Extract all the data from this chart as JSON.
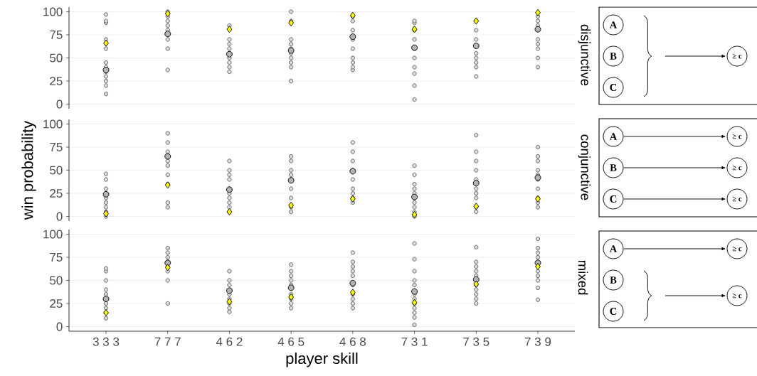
{
  "chart_data": [
    {
      "type": "scatter",
      "title": "disjunctive",
      "categories": [
        "3 3 3",
        "7 7 7",
        "4 6 2",
        "4 6 5",
        "4 6 8",
        "7 3 1",
        "7 3 5",
        "7 3 9"
      ],
      "ylim": [
        -5,
        105
      ],
      "yticks": [
        0,
        25,
        50,
        75,
        100
      ],
      "grid": "y",
      "tick_labels": "y",
      "series": [
        {
          "type": "scatter",
          "marker": "circle",
          "color": "#dcdcdc",
          "x": [
            "3 3 3",
            "3 3 3",
            "3 3 3",
            "3 3 3",
            "3 3 3",
            "3 3 3",
            "3 3 3",
            "3 3 3",
            "3 3 3",
            "3 3 3",
            "3 3 3",
            "3 3 3",
            "7 7 7",
            "7 7 7",
            "7 7 7",
            "7 7 7",
            "7 7 7",
            "7 7 7",
            "7 7 7",
            "7 7 7",
            "7 7 7",
            "4 6 2",
            "4 6 2",
            "4 6 2",
            "4 6 2",
            "4 6 2",
            "4 6 2",
            "4 6 2",
            "4 6 2",
            "4 6 2",
            "4 6 5",
            "4 6 5",
            "4 6 5",
            "4 6 5",
            "4 6 5",
            "4 6 5",
            "4 6 5",
            "4 6 5",
            "4 6 5",
            "4 6 5",
            "4 6 8",
            "4 6 8",
            "4 6 8",
            "4 6 8",
            "4 6 8",
            "4 6 8",
            "4 6 8",
            "4 6 8",
            "4 6 8",
            "7 3 1",
            "7 3 1",
            "7 3 1",
            "7 3 1",
            "7 3 1",
            "7 3 1",
            "7 3 1",
            "7 3 1",
            "7 3 1",
            "7 3 1",
            "7 3 5",
            "7 3 5",
            "7 3 5",
            "7 3 5",
            "7 3 5",
            "7 3 5",
            "7 3 5",
            "7 3 5",
            "7 3 9",
            "7 3 9",
            "7 3 9",
            "7 3 9",
            "7 3 9",
            "7 3 9",
            "7 3 9",
            "7 3 9"
          ],
          "values": [
            11,
            20,
            25,
            30,
            35,
            40,
            45,
            60,
            70,
            88,
            90,
            97,
            37,
            60,
            70,
            75,
            80,
            85,
            90,
            95,
            100,
            35,
            40,
            45,
            50,
            55,
            60,
            65,
            70,
            85,
            25,
            40,
            45,
            50,
            55,
            60,
            65,
            70,
            90,
            100,
            37,
            40,
            45,
            50,
            60,
            70,
            80,
            90,
            95,
            5,
            20,
            33,
            40,
            50,
            60,
            70,
            80,
            88,
            90,
            30,
            40,
            45,
            50,
            55,
            70,
            80,
            90,
            40,
            50,
            60,
            65,
            70,
            85,
            90,
            95
          ]
        },
        {
          "type": "scatter",
          "marker": "circle",
          "color": "#b3b3b3",
          "values": [
            37,
            76,
            54,
            58,
            73,
            61,
            63,
            81
          ]
        },
        {
          "type": "scatter",
          "marker": "diamond",
          "color": "#ffff00",
          "values": [
            66,
            98,
            81,
            88,
            96,
            81,
            90,
            99
          ]
        }
      ]
    },
    {
      "type": "scatter",
      "title": "conjunctive",
      "ylabel": "win probability",
      "categories": [
        "3 3 3",
        "7 7 7",
        "4 6 2",
        "4 6 5",
        "4 6 8",
        "7 3 1",
        "7 3 5",
        "7 3 9"
      ],
      "ylim": [
        -5,
        105
      ],
      "yticks": [
        0,
        25,
        50,
        75,
        100
      ],
      "grid": "y",
      "tick_labels": "y",
      "series": [
        {
          "type": "scatter",
          "marker": "circle",
          "color": "#dcdcdc",
          "x": [
            "3 3 3",
            "3 3 3",
            "3 3 3",
            "3 3 3",
            "3 3 3",
            "3 3 3",
            "3 3 3",
            "3 3 3",
            "3 3 3",
            "7 7 7",
            "7 7 7",
            "7 7 7",
            "7 7 7",
            "7 7 7",
            "7 7 7",
            "7 7 7",
            "7 7 7",
            "7 7 7",
            "4 6 2",
            "4 6 2",
            "4 6 2",
            "4 6 2",
            "4 6 2",
            "4 6 2",
            "4 6 2",
            "4 6 2",
            "4 6 2",
            "4 6 2",
            "4 6 5",
            "4 6 5",
            "4 6 5",
            "4 6 5",
            "4 6 5",
            "4 6 5",
            "4 6 5",
            "4 6 5",
            "4 6 5",
            "4 6 8",
            "4 6 8",
            "4 6 8",
            "4 6 8",
            "4 6 8",
            "4 6 8",
            "4 6 8",
            "4 6 8",
            "4 6 8",
            "7 3 1",
            "7 3 1",
            "7 3 1",
            "7 3 1",
            "7 3 1",
            "7 3 1",
            "7 3 1",
            "7 3 1",
            "7 3 1",
            "7 3 1",
            "7 3 5",
            "7 3 5",
            "7 3 5",
            "7 3 5",
            "7 3 5",
            "7 3 5",
            "7 3 5",
            "7 3 5",
            "7 3 5",
            "7 3 5",
            "7 3 9",
            "7 3 9",
            "7 3 9",
            "7 3 9",
            "7 3 9",
            "7 3 9",
            "7 3 9",
            "7 3 9",
            "7 3 9",
            "7 3 9"
          ],
          "values": [
            0,
            5,
            10,
            15,
            20,
            25,
            30,
            40,
            46,
            10,
            15,
            35,
            45,
            55,
            60,
            70,
            80,
            90,
            5,
            10,
            15,
            20,
            25,
            30,
            40,
            45,
            50,
            60,
            5,
            10,
            20,
            30,
            40,
            45,
            50,
            60,
            65,
            15,
            20,
            25,
            30,
            40,
            50,
            60,
            70,
            80,
            0,
            5,
            10,
            15,
            20,
            25,
            30,
            35,
            45,
            55,
            5,
            10,
            20,
            25,
            30,
            40,
            50,
            60,
            70,
            88,
            10,
            15,
            20,
            30,
            40,
            45,
            50,
            60,
            65,
            75
          ]
        },
        {
          "type": "scatter",
          "marker": "circle",
          "color": "#b3b3b3",
          "values": [
            24,
            65,
            29,
            39,
            49,
            21,
            36,
            42
          ]
        },
        {
          "type": "scatter",
          "marker": "diamond",
          "color": "#ffff00",
          "values": [
            3,
            34,
            5,
            12,
            19,
            2,
            11,
            19
          ]
        }
      ]
    },
    {
      "type": "scatter",
      "title": "mixed",
      "xlabel": "player skill",
      "categories": [
        "3 3 3",
        "7 7 7",
        "4 6 2",
        "4 6 5",
        "4 6 8",
        "7 3 1",
        "7 3 5",
        "7 3 9"
      ],
      "ylim": [
        -5,
        105
      ],
      "yticks": [
        0,
        25,
        50,
        75,
        100
      ],
      "grid": "y",
      "series": [
        {
          "type": "scatter",
          "marker": "circle",
          "color": "#dcdcdc",
          "x": [
            "3 3 3",
            "3 3 3",
            "3 3 3",
            "3 3 3",
            "3 3 3",
            "3 3 3",
            "3 3 3",
            "3 3 3",
            "3 3 3",
            "7 7 7",
            "7 7 7",
            "7 7 7",
            "7 7 7",
            "7 7 7",
            "7 7 7",
            "7 7 7",
            "7 7 7",
            "4 6 2",
            "4 6 2",
            "4 6 2",
            "4 6 2",
            "4 6 2",
            "4 6 2",
            "4 6 2",
            "4 6 2",
            "4 6 5",
            "4 6 5",
            "4 6 5",
            "4 6 5",
            "4 6 5",
            "4 6 5",
            "4 6 5",
            "4 6 5",
            "4 6 5",
            "4 6 8",
            "4 6 8",
            "4 6 8",
            "4 6 8",
            "4 6 8",
            "4 6 8",
            "4 6 8",
            "4 6 8",
            "4 6 8",
            "4 6 8",
            "7 3 1",
            "7 3 1",
            "7 3 1",
            "7 3 1",
            "7 3 1",
            "7 3 1",
            "7 3 1",
            "7 3 1",
            "7 3 1",
            "7 3 1",
            "7 3 1",
            "7 3 1",
            "7 3 5",
            "7 3 5",
            "7 3 5",
            "7 3 5",
            "7 3 5",
            "7 3 5",
            "7 3 5",
            "7 3 5",
            "7 3 5",
            "7 3 5",
            "7 3 9",
            "7 3 9",
            "7 3 9",
            "7 3 9",
            "7 3 9",
            "7 3 9",
            "7 3 9",
            "7 3 9",
            "7 3 9",
            "7 3 9"
          ],
          "values": [
            9,
            15,
            20,
            25,
            35,
            40,
            50,
            60,
            63,
            25,
            50,
            60,
            65,
            70,
            75,
            80,
            85,
            16,
            20,
            25,
            30,
            35,
            45,
            50,
            60,
            20,
            25,
            30,
            35,
            45,
            50,
            55,
            60,
            67,
            20,
            25,
            30,
            35,
            45,
            55,
            60,
            65,
            70,
            80,
            2,
            10,
            15,
            20,
            25,
            30,
            35,
            45,
            50,
            60,
            73,
            90,
            25,
            30,
            35,
            40,
            45,
            55,
            60,
            65,
            70,
            86,
            29,
            42,
            50,
            55,
            60,
            65,
            75,
            80,
            85,
            95
          ]
        },
        {
          "type": "scatter",
          "marker": "circle",
          "color": "#b3b3b3",
          "values": [
            30,
            69,
            39,
            42,
            47,
            38,
            51,
            69
          ]
        },
        {
          "type": "scatter",
          "marker": "diamond",
          "color": "#ffff00",
          "values": [
            15,
            64,
            27,
            32,
            37,
            26,
            46,
            65
          ]
        }
      ]
    },
    {
      "type": "other",
      "annotations": [
        "A",
        "B",
        "C",
        "≥ c"
      ]
    },
    {
      "type": "other",
      "annotations": [
        "A",
        "B",
        "C",
        "≥ c",
        "≥ c",
        "≥ c"
      ]
    },
    {
      "type": "other",
      "annotations": [
        "A",
        "B",
        "C",
        "≥ c",
        "≥ c"
      ]
    }
  ]
}
